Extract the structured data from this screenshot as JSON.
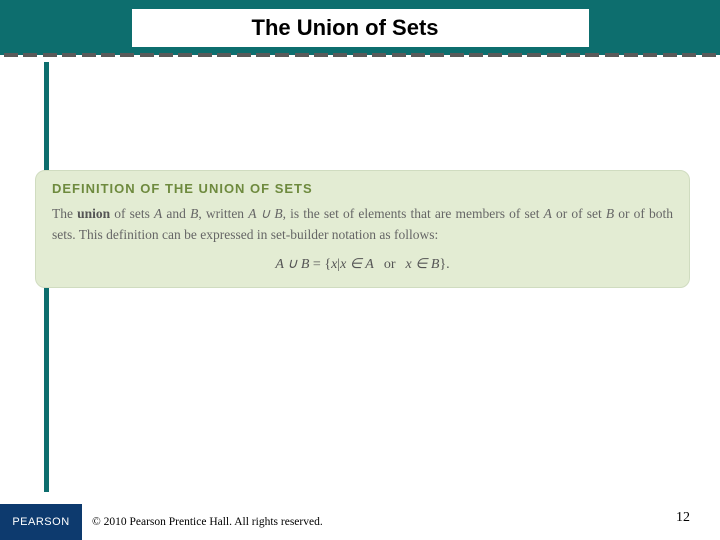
{
  "header": {
    "title": "The Union of Sets",
    "bg_color": "#0d6e6e",
    "dash_color": "#5a5a5a",
    "dash_count": 37
  },
  "definition": {
    "heading": "DEFINITION OF THE UNION OF SETS",
    "heading_color": "#6e8a3e",
    "box_bg": "#e3ecd3",
    "body_parts": {
      "p1": "The ",
      "bold1": "union",
      "p2": " of sets ",
      "iA1": "A",
      "p3": " and ",
      "iB1": "B",
      "p4": ", written ",
      "iAB": "A ∪ B",
      "p5": ", is the set of elements that are members of set ",
      "iA2": "A",
      "p6": " or of set ",
      "iB2": "B",
      "p7": " or of both sets. This definition can be expressed in set-builder notation as follows:"
    },
    "formula": {
      "lhs": "A ∪ B",
      "eq": " = ",
      "open": "{",
      "x": "x",
      "bar": "|",
      "xin1": "x ∈ A",
      "or": "or",
      "xin2": "x ∈ B",
      "close": "}.",
      "text_color": "#555555"
    }
  },
  "footer": {
    "logo_text": "PEARSON",
    "logo_bg": "#0d3a6e",
    "copyright": "© 2010 Pearson Prentice Hall. All rights reserved.",
    "page_number": "12"
  }
}
